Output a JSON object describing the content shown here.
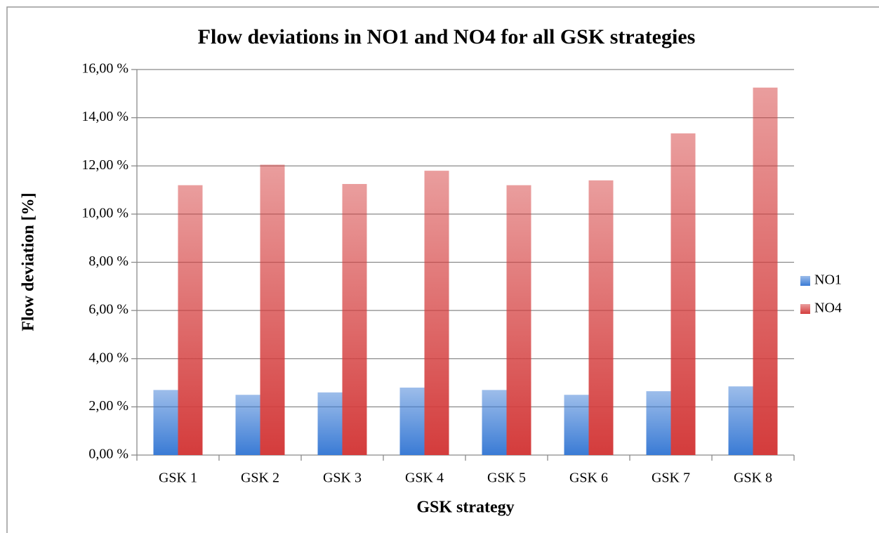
{
  "chart_data": {
    "type": "bar",
    "title": "Flow deviations in NO1 and NO4 for all GSK strategies",
    "x_label": "GSK strategy",
    "y_label": "Flow deviation [%]",
    "categories": [
      "GSK 1",
      "GSK 2",
      "GSK 3",
      "GSK 4",
      "GSK 5",
      "GSK 6",
      "GSK 7",
      "GSK 8"
    ],
    "series": [
      {
        "name": "NO1",
        "color": "#3a7bd5",
        "values": [
          2.7,
          2.5,
          2.6,
          2.8,
          2.7,
          2.5,
          2.65,
          2.85
        ]
      },
      {
        "name": "NO4",
        "color": "#d43c3c",
        "values": [
          11.2,
          12.05,
          11.25,
          11.8,
          11.2,
          11.4,
          13.35,
          15.25
        ]
      }
    ],
    "ylim": [
      0,
      16
    ],
    "yticks": [
      {
        "value": 0,
        "label": "0,00 %"
      },
      {
        "value": 2,
        "label": "2,00 %"
      },
      {
        "value": 4,
        "label": "4,00 %"
      },
      {
        "value": 6,
        "label": "6,00 %"
      },
      {
        "value": 8,
        "label": "8,00 %"
      },
      {
        "value": 10,
        "label": "10,00 %"
      },
      {
        "value": 12,
        "label": "12,00 %"
      },
      {
        "value": 14,
        "label": "14,00 %"
      },
      {
        "value": 16,
        "label": "16,00 %"
      }
    ],
    "grid": true,
    "legend": "right"
  }
}
